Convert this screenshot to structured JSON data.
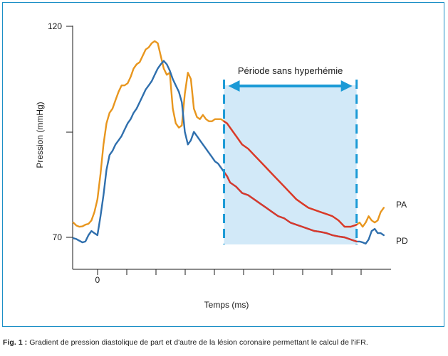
{
  "caption": {
    "label": "Fig. 1 :",
    "text": " Gradient de pression diastolique de part et d'autre de la lésion coronaire permettant le calcul de l'iFR."
  },
  "colors": {
    "frame": "#1b8fc6",
    "pa": "#e8961e",
    "pd": "#2f6fad",
    "segment": "#d9382b",
    "window_fill": "#d2e9f8",
    "window_marker": "#1b9ad6"
  },
  "chart_data": {
    "type": "line",
    "ylabel": "Pression (mmHg)",
    "xlabel": "Temps (ms)",
    "y_ticks": [
      {
        "value": 120,
        "label": "120"
      },
      {
        "value": 70,
        "label": "70"
      }
    ],
    "x_ticks": [
      {
        "value": 0,
        "label": "0"
      }
    ],
    "ylim": [
      65,
      120
    ],
    "xlim": [
      -40,
      480
    ],
    "annotation": {
      "text": "Période sans hyperhémie",
      "x_start": 210,
      "x_end": 430
    },
    "series": [
      {
        "name": "PA",
        "x": [
          -40,
          -35,
          -30,
          -25,
          -20,
          -15,
          -10,
          -5,
          0,
          5,
          10,
          15,
          20,
          25,
          30,
          35,
          40,
          45,
          50,
          55,
          60,
          65,
          70,
          75,
          80,
          85,
          90,
          95,
          100,
          105,
          110,
          115,
          120,
          125,
          130,
          135,
          140,
          145,
          150,
          155,
          160,
          165,
          170,
          175,
          180,
          185,
          190,
          195,
          200,
          205,
          210,
          215,
          220,
          230,
          240,
          250,
          260,
          270,
          280,
          290,
          300,
          310,
          320,
          330,
          340,
          350,
          360,
          370,
          380,
          390,
          400,
          410,
          420,
          430,
          435,
          440,
          445,
          450,
          455,
          460,
          465,
          470,
          475
        ],
        "y": [
          73.5,
          72.8,
          72.5,
          72.6,
          73.0,
          73.2,
          74.0,
          76.0,
          79.0,
          85.0,
          92.0,
          97.0,
          99.5,
          100.5,
          102.5,
          104.5,
          106.0,
          106.0,
          106.5,
          108.0,
          110.0,
          111.0,
          111.5,
          113.0,
          114.5,
          115.0,
          116.0,
          116.5,
          116.0,
          113.0,
          110.0,
          108.5,
          109.0,
          100.5,
          97.0,
          96.0,
          96.5,
          104.0,
          109.0,
          107.5,
          100.5,
          98.5,
          98.0,
          99.0,
          98.0,
          97.5,
          97.5,
          98.0,
          98.0,
          98.0,
          97.5,
          97.0,
          96.0,
          94.0,
          92.0,
          91.0,
          89.5,
          88.0,
          86.5,
          85.0,
          83.5,
          82.0,
          80.5,
          79.0,
          78.0,
          77.0,
          76.5,
          76.0,
          75.5,
          75.0,
          74.0,
          72.5,
          72.5,
          73.0,
          73.5,
          72.5,
          73.5,
          75.0,
          74.0,
          73.5,
          74.0,
          76.0,
          77.0
        ]
      },
      {
        "name": "PD",
        "x": [
          -40,
          -35,
          -30,
          -25,
          -20,
          -15,
          -10,
          -5,
          0,
          5,
          10,
          15,
          20,
          25,
          30,
          35,
          40,
          45,
          50,
          55,
          60,
          65,
          70,
          75,
          80,
          85,
          90,
          95,
          100,
          105,
          110,
          115,
          120,
          125,
          130,
          135,
          140,
          145,
          150,
          155,
          160,
          165,
          170,
          175,
          180,
          185,
          190,
          195,
          200,
          205,
          210,
          215,
          220,
          230,
          240,
          250,
          260,
          270,
          280,
          290,
          300,
          310,
          320,
          330,
          340,
          350,
          360,
          370,
          380,
          390,
          400,
          410,
          420,
          430,
          435,
          440,
          445,
          450,
          455,
          460,
          465,
          470,
          475
        ],
        "y": [
          69.8,
          69.6,
          69.2,
          68.8,
          69.0,
          70.5,
          71.5,
          71.0,
          70.5,
          75.0,
          80.0,
          86.0,
          89.5,
          90.5,
          92.0,
          93.0,
          94.0,
          95.5,
          97.0,
          98.0,
          99.5,
          100.5,
          102.0,
          103.5,
          105.0,
          106.0,
          107.0,
          108.5,
          110.0,
          111.0,
          111.8,
          111.0,
          109.5,
          107.5,
          106.0,
          104.5,
          102.0,
          95.0,
          92.0,
          93.0,
          95.0,
          94.0,
          93.0,
          92.0,
          91.0,
          90.0,
          89.0,
          88.0,
          87.5,
          86.5,
          85.5,
          84.5,
          83.0,
          82.0,
          80.5,
          80.0,
          79.0,
          78.0,
          77.0,
          76.0,
          75.0,
          74.5,
          73.5,
          73.0,
          72.5,
          72.0,
          71.5,
          71.3,
          71.0,
          70.5,
          70.2,
          70.0,
          69.5,
          69.0,
          69.0,
          68.8,
          68.5,
          69.5,
          71.5,
          72.0,
          71.0,
          71.0,
          70.5
        ]
      }
    ]
  },
  "labels": {
    "pa": "PA",
    "pd": "PD"
  }
}
